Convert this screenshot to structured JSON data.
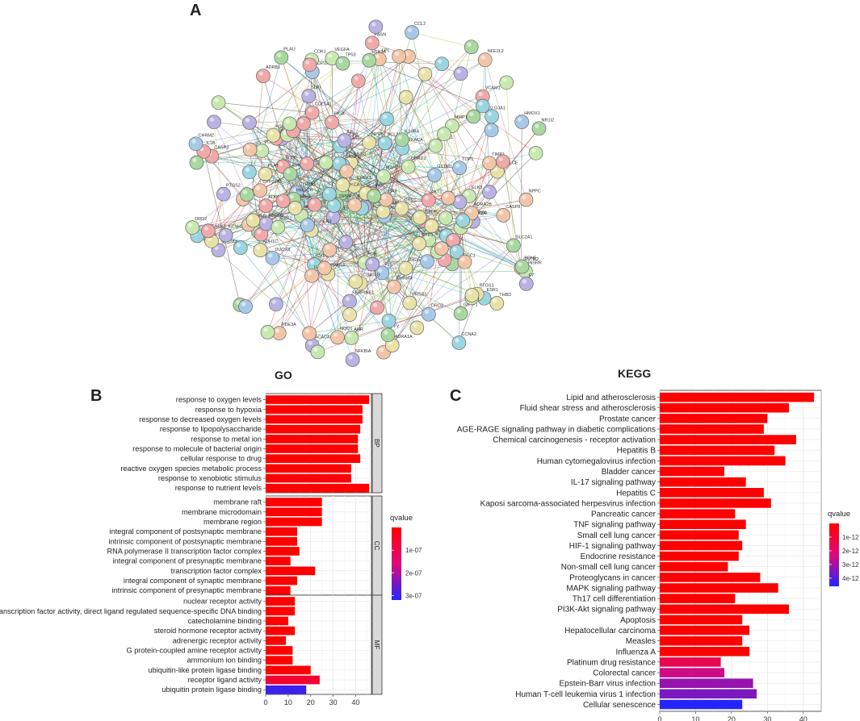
{
  "panels": {
    "a": "A",
    "b": "B",
    "c": "C"
  },
  "network": {
    "nodes": [
      "AKR1B1",
      "AKR1C3",
      "CYP1A2",
      "GSTM2",
      "CETP",
      "NQO1",
      "NR1I3",
      "CYP1B1",
      "UCP2",
      "PON1",
      "RASSF1",
      "NR1I2",
      "PPARGC1",
      "GSTM1",
      "ADH1C",
      "PKIA",
      "CCNA2",
      "HK2",
      "SOD1",
      "GSTP1",
      "CYP3A4",
      "INSRR",
      "MAOB",
      "E2F1",
      "PDE3",
      "LPL",
      "CYP1",
      "MAOA",
      "NPPA",
      "TOP2A",
      "TOP1",
      "CCNB1",
      "SLC2A4",
      "ABCG2",
      "POR",
      "NPPB",
      "AHR",
      "NFE2L2",
      "HMOX1",
      "HTR3A",
      "CHEK1",
      "PPARA",
      "CHRM3",
      "CDK1",
      "NFKBIA",
      "ELK3",
      "SLC6A4",
      "F7",
      "CHEK2",
      "HSP90",
      "ESR1",
      "MAPK1",
      "AKT1",
      "VEGFA",
      "PLAU",
      "ADRA1A",
      "PARP1",
      "BAX",
      "CASP3",
      "PRKACA",
      "PRKCA",
      "SERPINE1",
      "CCR4",
      "F10",
      "BCL2",
      "INS",
      "CASP9",
      "IGF1",
      "ADRB2",
      "NPPC",
      "KCNH2",
      "PDE3A",
      "TP53",
      "CD40LG",
      "BDNF",
      "DRD1",
      "DRD5",
      "CASP8",
      "ESR2",
      "IL1B",
      "PLAT",
      "THBD",
      "SLPI",
      "GJA1",
      "CTSD",
      "MMP1",
      "PTGS2",
      "CCL2",
      "CHRM2",
      "ADRB1",
      "DPP4",
      "PCOLCE",
      "COL1A1",
      "FASN",
      "CYP19A1",
      "VCAM1",
      "ADRA2A",
      "DRD2",
      "COL3A1",
      "IL6",
      "PRSS3",
      "PRSS1",
      "TIMP1",
      "ADRA2B",
      "DRD3",
      "PYY",
      "ACACA",
      "LTA4H",
      "IL10RA",
      "IL1A",
      "CXCL10",
      "SELE",
      "HMGCR",
      "DUOX2",
      "MPO",
      "SLC2A1",
      "OPRM1",
      "OPRD1",
      "PTGER3",
      "ALOX5",
      "PTGS1",
      "MAP2",
      "CXCL11"
    ]
  },
  "chart_data": [
    {
      "type": "bar",
      "orientation": "horizontal",
      "title": "GO",
      "xticks": [
        0,
        10,
        20,
        30,
        40
      ],
      "xlim": [
        0,
        47
      ],
      "facets": [
        {
          "name": "BP",
          "categories": [
            "response to oxygen levels",
            "response to hypoxia",
            "response to decreased oxygen levels",
            "response to lipopolysaccharide",
            "response to metal ion",
            "response to molecule of bacterial origin",
            "cellular response to drug",
            "reactive oxygen species metabolic process",
            "response to xenobiotic stimulus",
            "response to nutrient levels"
          ],
          "values": [
            46,
            43,
            43,
            42,
            41,
            41,
            42,
            38,
            38,
            46
          ],
          "qvalues": [
            0.0,
            0.0,
            0.0,
            0.0,
            0.0,
            0.0,
            0.0,
            0.0,
            0.0,
            0.0
          ]
        },
        {
          "name": "CC",
          "categories": [
            "membrane raft",
            "membrane microdomain",
            "membrane region",
            "integral component of postsynaptic membrane",
            "intrinsic component of postsynaptic membrane",
            "RNA polymerase II transcription factor complex",
            "integral component of presynaptic membrane",
            "transcription factor complex",
            "integral component of synaptic membrane",
            "intrinsic component of presynaptic membrane"
          ],
          "values": [
            25,
            25,
            25,
            14,
            14,
            15,
            11,
            22,
            14,
            11
          ],
          "qvalues": [
            0.0,
            0.0,
            0.0,
            0.0,
            0.0,
            0.0,
            0.0,
            0.0,
            0.0,
            0.0
          ]
        },
        {
          "name": "MF",
          "categories": [
            "nuclear receptor activity",
            "transcription factor activity, direct ligand regulated sequence-specific DNA binding",
            "catecholamine binding",
            "steroid hormone receptor activity",
            "adrenergic receptor activity",
            "G protein-coupled amine receptor activity",
            "ammonium ion binding",
            "ubiquitin-like protein ligase binding",
            "receptor ligand activity",
            "ubiquitin protein ligase binding"
          ],
          "values": [
            13,
            13,
            10,
            13,
            9,
            12,
            12,
            20,
            24,
            18
          ],
          "qvalues": [
            0.0,
            0.0,
            0.0,
            0.0,
            0.0,
            0.0,
            0.0,
            0.0,
            6e-08,
            3e-07
          ]
        }
      ],
      "legend": {
        "title": "qvalue",
        "ticks": [
          "1e-07",
          "2e-07",
          "3e-07"
        ],
        "tick_values": [
          1e-07,
          2e-07,
          3e-07
        ],
        "min": 0,
        "max": 3.2e-07,
        "placement": "right"
      },
      "colors": {
        "low": "#ff0000",
        "mid": "#dd0a7a",
        "high": "#2424ff"
      }
    },
    {
      "type": "bar",
      "orientation": "horizontal",
      "title": "KEGG",
      "xticks": [
        0,
        10,
        20,
        30,
        40
      ],
      "xlim": [
        0,
        45
      ],
      "categories": [
        "Lipid and atherosclerosis",
        "Fluid shear stress and atherosclerosis",
        "Prostate cancer",
        "AGE-RAGE signaling pathway in diabetic complications",
        "Chemical carcinogenesis - receptor activation",
        "Hepatitis B",
        "Human cytomegalovirus infection",
        "Bladder cancer",
        "IL-17 signaling pathway",
        "Hepatitis C",
        "Kaposi sarcoma-associated herpesvirus infection",
        "Pancreatic cancer",
        "TNF signaling pathway",
        "Small cell lung cancer",
        "HIF-1 signaling pathway",
        "Endocrine resistance",
        "Non-small cell lung cancer",
        "Proteoglycans in cancer",
        "MAPK signaling pathway",
        "Th17 cell differentiation",
        "PI3K-Akt signaling pathway",
        "Apoptosis",
        "Hepatocellular carcinoma",
        "Measles",
        "Influenza A",
        "Platinum drug resistance",
        "Colorectal cancer",
        "Epstein-Barr virus infection",
        "Human T-cell leukemia virus 1 infection",
        "Cellular senescence"
      ],
      "values": [
        43,
        36,
        30,
        29,
        38,
        32,
        35,
        18,
        24,
        29,
        31,
        21,
        24,
        22,
        23,
        22,
        19,
        28,
        33,
        21,
        36,
        23,
        25,
        23,
        25,
        17,
        18,
        26,
        27,
        23
      ],
      "qvalues": [
        0,
        0,
        0,
        0,
        0,
        0,
        0,
        0,
        0,
        0,
        0,
        0,
        0,
        0,
        0,
        0,
        0,
        0,
        0,
        0,
        0,
        0,
        0,
        0,
        0,
        1.5e-12,
        2.5e-12,
        3.2e-12,
        3.5e-12,
        4.6e-12
      ],
      "legend": {
        "title": "qvalue",
        "ticks": [
          "1e-12",
          "2e-12",
          "3e-12",
          "4e-12"
        ],
        "tick_values": [
          1e-12,
          2e-12,
          3e-12,
          4e-12
        ],
        "min": 0,
        "max": 4.6e-12,
        "placement": "right"
      },
      "colors": {
        "low": "#ff0000",
        "mid": "#dd0a7a",
        "high": "#2424ff"
      }
    }
  ]
}
